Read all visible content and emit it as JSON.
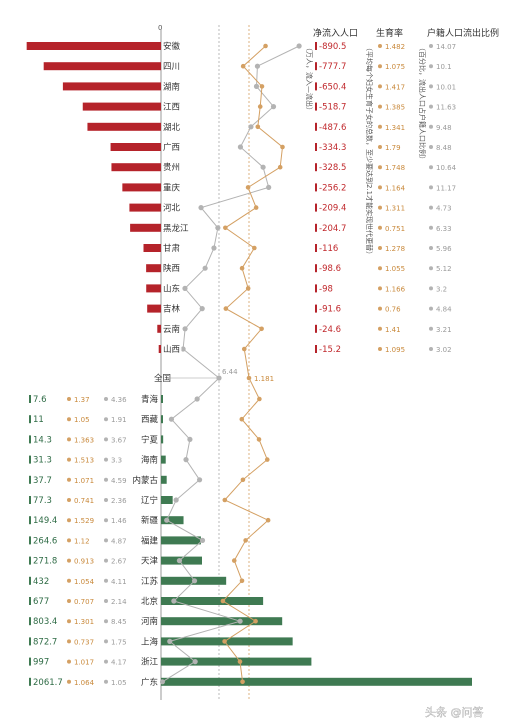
{
  "chart_data": {
    "type": "bar",
    "zero_label": "0",
    "national": {
      "label": "全国",
      "fertility": "1.181",
      "outflow_ratio": "6.44"
    },
    "headers": {
      "net_population": "净流入人口",
      "net_population_note": "（万人，流入—流出）",
      "fertility": "生育率",
      "fertility_note": "（平均每个妇女生育子女的总数，至少要达到2.1才能实现世代更替）",
      "outflow": "户籍人口流出比例",
      "outflow_note": "（百分比，流出人口占户籍人口比例）"
    },
    "outflow_provinces": [
      {
        "name": "安徽",
        "net": -890.5,
        "net_label": "-890.5",
        "fertility": 1.482,
        "fertility_label": "1.482",
        "outflow": 14.07,
        "outflow_label": "14.07"
      },
      {
        "name": "四川",
        "net": -777.7,
        "net_label": "-777.7",
        "fertility": 1.075,
        "fertility_label": "1.075",
        "outflow": 10.1,
        "outflow_label": "10.1"
      },
      {
        "name": "湖南",
        "net": -650.4,
        "net_label": "-650.4",
        "fertility": 1.417,
        "fertility_label": "1.417",
        "outflow": 10.01,
        "outflow_label": "10.01"
      },
      {
        "name": "江西",
        "net": -518.7,
        "net_label": "-518.7",
        "fertility": 1.385,
        "fertility_label": "1.385",
        "outflow": 11.63,
        "outflow_label": "11.63"
      },
      {
        "name": "湖北",
        "net": -487.6,
        "net_label": "-487.6",
        "fertility": 1.341,
        "fertility_label": "1.341",
        "outflow": 9.48,
        "outflow_label": "9.48"
      },
      {
        "name": "广西",
        "net": -334.3,
        "net_label": "-334.3",
        "fertility": 1.79,
        "fertility_label": "1.79",
        "outflow": 8.48,
        "outflow_label": "8.48"
      },
      {
        "name": "贵州",
        "net": -328.5,
        "net_label": "-328.5",
        "fertility": 1.748,
        "fertility_label": "1.748",
        "outflow": 10.64,
        "outflow_label": "10.64"
      },
      {
        "name": "重庆",
        "net": -256.2,
        "net_label": "-256.2",
        "fertility": 1.164,
        "fertility_label": "1.164",
        "outflow": 11.17,
        "outflow_label": "11.17"
      },
      {
        "name": "河北",
        "net": -209.4,
        "net_label": "-209.4",
        "fertility": 1.311,
        "fertility_label": "1.311",
        "outflow": 4.73,
        "outflow_label": "4.73"
      },
      {
        "name": "黑龙江",
        "net": -204.7,
        "net_label": "-204.7",
        "fertility": 0.751,
        "fertility_label": "0.751",
        "outflow": 6.33,
        "outflow_label": "6.33"
      },
      {
        "name": "甘肃",
        "net": -116,
        "net_label": "-116",
        "fertility": 1.278,
        "fertility_label": "1.278",
        "outflow": 5.96,
        "outflow_label": "5.96"
      },
      {
        "name": "陕西",
        "net": -98.6,
        "net_label": "-98.6",
        "fertility": 1.055,
        "fertility_label": "1.055",
        "outflow": 5.12,
        "outflow_label": "5.12"
      },
      {
        "name": "山东",
        "net": -98,
        "net_label": "-98",
        "fertility": 1.166,
        "fertility_label": "1.166",
        "outflow": 3.2,
        "outflow_label": "3.2"
      },
      {
        "name": "吉林",
        "net": -91.6,
        "net_label": "-91.6",
        "fertility": 0.76,
        "fertility_label": "0.76",
        "outflow": 4.84,
        "outflow_label": "4.84"
      },
      {
        "name": "云南",
        "net": -24.6,
        "net_label": "-24.6",
        "fertility": 1.41,
        "fertility_label": "1.41",
        "outflow": 3.21,
        "outflow_label": "3.21"
      },
      {
        "name": "山西",
        "net": -15.2,
        "net_label": "-15.2",
        "fertility": 1.095,
        "fertility_label": "1.095",
        "outflow": 3.02,
        "outflow_label": "3.02"
      }
    ],
    "inflow_provinces": [
      {
        "name": "青海",
        "net": 7.6,
        "net_label": "7.6",
        "fertility": 1.37,
        "fertility_label": "1.37",
        "outflow": 4.36,
        "outflow_label": "4.36"
      },
      {
        "name": "西藏",
        "net": 11,
        "net_label": "11",
        "fertility": 1.05,
        "fertility_label": "1.05",
        "outflow": 1.91,
        "outflow_label": "1.91"
      },
      {
        "name": "宁夏",
        "net": 14.3,
        "net_label": "14.3",
        "fertility": 1.363,
        "fertility_label": "1.363",
        "outflow": 3.67,
        "outflow_label": "3.67"
      },
      {
        "name": "海南",
        "net": 31.3,
        "net_label": "31.3",
        "fertility": 1.513,
        "fertility_label": "1.513",
        "outflow": 3.3,
        "outflow_label": "3.3"
      },
      {
        "name": "内蒙古",
        "net": 37.7,
        "net_label": "37.7",
        "fertility": 1.071,
        "fertility_label": "1.071",
        "outflow": 4.59,
        "outflow_label": "4.59"
      },
      {
        "name": "辽宁",
        "net": 77.3,
        "net_label": "77.3",
        "fertility": 0.741,
        "fertility_label": "0.741",
        "outflow": 2.36,
        "outflow_label": "2.36"
      },
      {
        "name": "新疆",
        "net": 149.4,
        "net_label": "149.4",
        "fertility": 1.529,
        "fertility_label": "1.529",
        "outflow": 1.46,
        "outflow_label": "1.46"
      },
      {
        "name": "福建",
        "net": 264.6,
        "net_label": "264.6",
        "fertility": 1.12,
        "fertility_label": "1.12",
        "outflow": 4.87,
        "outflow_label": "4.87"
      },
      {
        "name": "天津",
        "net": 271.8,
        "net_label": "271.8",
        "fertility": 0.913,
        "fertility_label": "0.913",
        "outflow": 2.67,
        "outflow_label": "2.67"
      },
      {
        "name": "江苏",
        "net": 432,
        "net_label": "432",
        "fertility": 1.054,
        "fertility_label": "1.054",
        "outflow": 4.11,
        "outflow_label": "4.11"
      },
      {
        "name": "北京",
        "net": 677,
        "net_label": "677",
        "fertility": 0.707,
        "fertility_label": "0.707",
        "outflow": 2.14,
        "outflow_label": "2.14"
      },
      {
        "name": "河南",
        "net": 803.4,
        "net_label": "803.4",
        "fertility": 1.301,
        "fertility_label": "1.301",
        "outflow": 8.45,
        "outflow_label": "8.45"
      },
      {
        "name": "上海",
        "net": 872.7,
        "net_label": "872.7",
        "fertility": 0.737,
        "outflow": 1.75,
        "fertility_label": "0.737",
        "outflow_label": "1.75"
      },
      {
        "name": "浙江",
        "net": 997,
        "net_label": "997",
        "fertility": 1.017,
        "fertility_label": "1.017",
        "outflow": 4.17,
        "outflow_label": "4.17"
      },
      {
        "name": "广东",
        "net": 2061.7,
        "net_label": "2061.7",
        "fertility": 1.064,
        "fertility_label": "1.064",
        "outflow": 1.05,
        "outflow_label": "1.05"
      }
    ],
    "colors": {
      "outflow_bar": "#b5232a",
      "inflow_bar": "#3f7a52",
      "fertility_line": "#d4a063",
      "outflow_line": "#b3b3b3",
      "axis": "#999999"
    }
  },
  "watermark": {
    "text": "头条 @问答"
  }
}
